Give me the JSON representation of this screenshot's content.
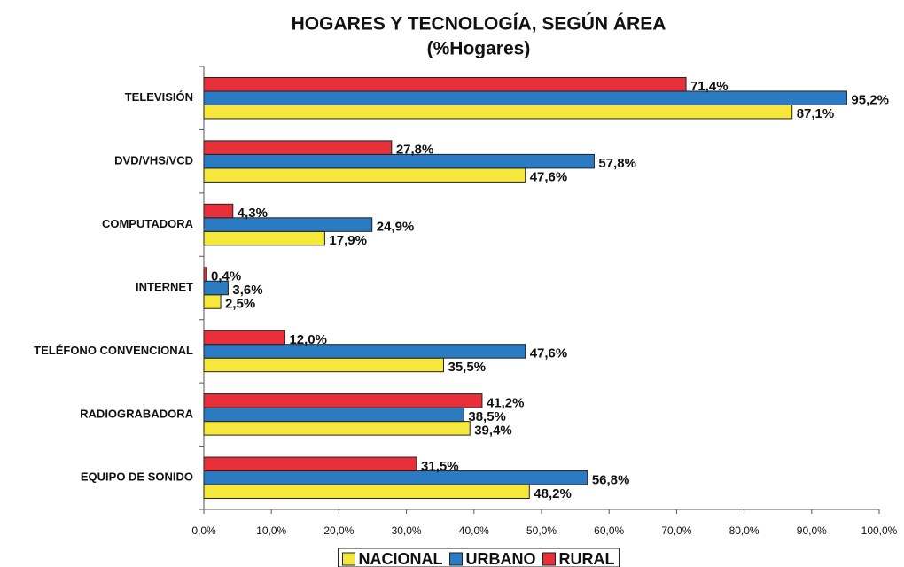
{
  "chart_data": {
    "type": "bar",
    "orientation": "horizontal",
    "title": "HOGARES Y TECNOLOGÍA, SEGÚN ÁREA",
    "subtitle": "(%Hogares)",
    "categories": [
      "TELEVISIÓN",
      "DVD/VHS/VCD",
      "COMPUTADORA",
      "INTERNET",
      "TELÉFONO CONVENCIONAL",
      "RADIOGRABADORA",
      "EQUIPO DE SONIDO"
    ],
    "series": [
      {
        "name": "NACIONAL",
        "color": "#f6e83a",
        "values": [
          87.1,
          47.6,
          17.9,
          2.5,
          35.5,
          39.4,
          48.2
        ],
        "value_labels": [
          "87,1%",
          "47,6%",
          "17,9%",
          "2,5%",
          "35,5%",
          "39,4%",
          "48,2%"
        ]
      },
      {
        "name": "URBANO",
        "color": "#2a7bc1",
        "values": [
          95.2,
          57.8,
          24.9,
          3.6,
          47.6,
          38.5,
          56.8
        ],
        "value_labels": [
          "95,2%",
          "57,8%",
          "24,9%",
          "3,6%",
          "47,6%",
          "38,5%",
          "56,8%"
        ]
      },
      {
        "name": "RURAL",
        "color": "#e8303a",
        "values": [
          71.4,
          27.8,
          4.3,
          0.4,
          12.0,
          41.2,
          31.5
        ],
        "value_labels": [
          "71,4%",
          "27,8%",
          "4,3%",
          "0,4%",
          "12,0%",
          "41,2%",
          "31,5%"
        ]
      }
    ],
    "xlim": [
      0,
      100
    ],
    "xticks": [
      {
        "value": 0,
        "label": "0,0%"
      },
      {
        "value": 10,
        "label": "10,0%"
      },
      {
        "value": 20,
        "label": "20,0%"
      },
      {
        "value": 30,
        "label": "30,0%"
      },
      {
        "value": 40,
        "label": "40,0%"
      },
      {
        "value": 50,
        "label": "50,0%"
      },
      {
        "value": 60,
        "label": "60,0%"
      },
      {
        "value": 70,
        "label": "70,0%"
      },
      {
        "value": 80,
        "label": "80,0%"
      },
      {
        "value": 90,
        "label": "90,0%"
      },
      {
        "value": 100,
        "label": "100,0%"
      }
    ],
    "legend": "bottom"
  }
}
